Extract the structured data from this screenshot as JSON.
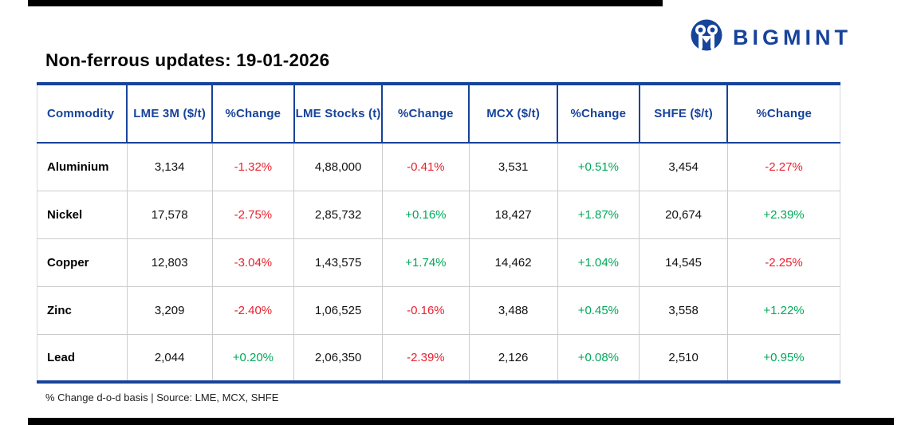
{
  "brand": {
    "name": "BIGMINT",
    "logo_icon": "bigmint-mascot-icon"
  },
  "title": "Non-ferrous updates: 19-01-2026",
  "footer": "% Change d-o-d basis | Source: LME, MCX, SHFE",
  "colors": {
    "accent_blue": "#17439b",
    "negative_red": "#e8212e",
    "positive_green": "#00a859",
    "grid_gray": "#cccccc",
    "accent_bar_black": "#000000"
  },
  "table": {
    "columns": [
      "Commodity",
      "LME 3M ($/t)",
      "%Change",
      "LME Stocks (t)",
      "%Change",
      "MCX ($/t)",
      "%Change",
      "SHFE ($/t)",
      "%Change"
    ],
    "rows": [
      {
        "commodity": "Aluminium",
        "cells": [
          {
            "text": "3,134",
            "type": "value"
          },
          {
            "text": "-1.32%",
            "type": "change",
            "dir": "down"
          },
          {
            "text": "4,88,000",
            "type": "value"
          },
          {
            "text": "-0.41%",
            "type": "change",
            "dir": "down"
          },
          {
            "text": "3,531",
            "type": "value"
          },
          {
            "text": "+0.51%",
            "type": "change",
            "dir": "up"
          },
          {
            "text": "3,454",
            "type": "value"
          },
          {
            "text": "-2.27%",
            "type": "change",
            "dir": "down"
          }
        ]
      },
      {
        "commodity": "Nickel",
        "cells": [
          {
            "text": "17,578",
            "type": "value"
          },
          {
            "text": "-2.75%",
            "type": "change",
            "dir": "down"
          },
          {
            "text": "2,85,732",
            "type": "value"
          },
          {
            "text": "+0.16%",
            "type": "change",
            "dir": "up"
          },
          {
            "text": "18,427",
            "type": "value"
          },
          {
            "text": "+1.87%",
            "type": "change",
            "dir": "up"
          },
          {
            "text": "20,674",
            "type": "value"
          },
          {
            "text": "+2.39%",
            "type": "change",
            "dir": "up"
          }
        ]
      },
      {
        "commodity": "Copper",
        "cells": [
          {
            "text": "12,803",
            "type": "value"
          },
          {
            "text": "-3.04%",
            "type": "change",
            "dir": "down"
          },
          {
            "text": "1,43,575",
            "type": "value"
          },
          {
            "text": "+1.74%",
            "type": "change",
            "dir": "up"
          },
          {
            "text": "14,462",
            "type": "value"
          },
          {
            "text": "+1.04%",
            "type": "change",
            "dir": "up"
          },
          {
            "text": "14,545",
            "type": "value"
          },
          {
            "text": "-2.25%",
            "type": "change",
            "dir": "down"
          }
        ]
      },
      {
        "commodity": "Zinc",
        "cells": [
          {
            "text": "3,209",
            "type": "value"
          },
          {
            "text": "-2.40%",
            "type": "change",
            "dir": "down"
          },
          {
            "text": "1,06,525",
            "type": "value"
          },
          {
            "text": "-0.16%",
            "type": "change",
            "dir": "down"
          },
          {
            "text": "3,488",
            "type": "value"
          },
          {
            "text": "+0.45%",
            "type": "change",
            "dir": "up"
          },
          {
            "text": "3,558",
            "type": "value"
          },
          {
            "text": "+1.22%",
            "type": "change",
            "dir": "up"
          }
        ]
      },
      {
        "commodity": "Lead",
        "cells": [
          {
            "text": "2,044",
            "type": "value"
          },
          {
            "text": "+0.20%",
            "type": "change",
            "dir": "up"
          },
          {
            "text": "2,06,350",
            "type": "value"
          },
          {
            "text": "-2.39%",
            "type": "change",
            "dir": "down"
          },
          {
            "text": "2,126",
            "type": "value"
          },
          {
            "text": "+0.08%",
            "type": "change",
            "dir": "up"
          },
          {
            "text": "2,510",
            "type": "value"
          },
          {
            "text": "+0.95%",
            "type": "change",
            "dir": "up"
          }
        ]
      }
    ]
  }
}
